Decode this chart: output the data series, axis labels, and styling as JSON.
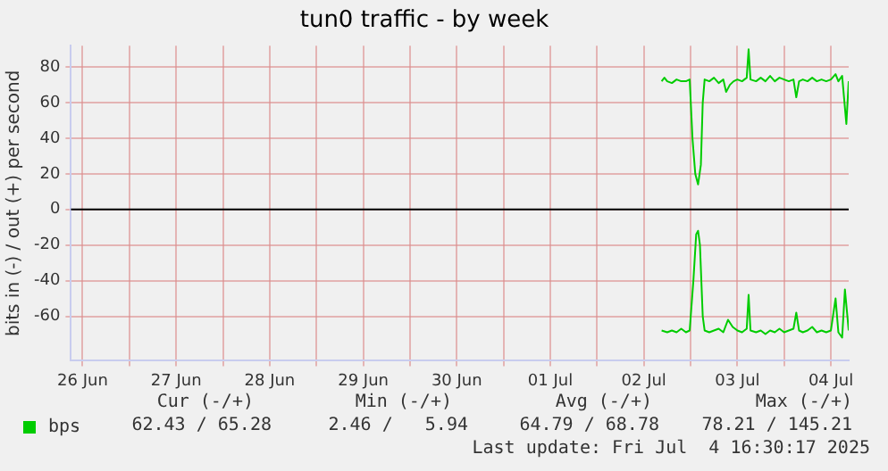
{
  "chart_data": {
    "type": "line",
    "title": "tun0 traffic - by week",
    "ylabel": "bits in (-) / out (+) per second",
    "xlim": [
      "2025-06-26T09:00",
      "2025-07-04T16:34"
    ],
    "xticks": [
      {
        "value": "2025-06-26T12:00",
        "label": "26 Jun"
      },
      {
        "value": "2025-06-27T00:00",
        "label": null
      },
      {
        "value": "2025-06-27T12:00",
        "label": "27 Jun"
      },
      {
        "value": "2025-06-28T00:00",
        "label": null
      },
      {
        "value": "2025-06-28T12:00",
        "label": "28 Jun"
      },
      {
        "value": "2025-06-29T00:00",
        "label": null
      },
      {
        "value": "2025-06-29T12:00",
        "label": "29 Jun"
      },
      {
        "value": "2025-06-30T00:00",
        "label": null
      },
      {
        "value": "2025-06-30T12:00",
        "label": "30 Jun"
      },
      {
        "value": "2025-07-01T00:00",
        "label": null
      },
      {
        "value": "2025-07-01T12:00",
        "label": "01 Jul"
      },
      {
        "value": "2025-07-02T00:00",
        "label": null
      },
      {
        "value": "2025-07-02T12:00",
        "label": "02 Jul"
      },
      {
        "value": "2025-07-03T00:00",
        "label": null
      },
      {
        "value": "2025-07-03T12:00",
        "label": "03 Jul"
      },
      {
        "value": "2025-07-04T00:00",
        "label": null
      },
      {
        "value": "2025-07-04T12:00",
        "label": "04 Jul"
      }
    ],
    "ylim": [
      -85,
      92
    ],
    "yticks": [
      -60,
      -40,
      -20,
      0,
      20,
      40,
      60,
      80
    ],
    "grid": true,
    "legend": "bottom",
    "marker": "none",
    "line_style": "solid",
    "ref_lines": [
      {
        "axis": "y",
        "value": 0,
        "color": "#000000"
      }
    ],
    "series": [
      {
        "name": "bps",
        "color": "#00cc00",
        "x": [
          "2025-07-02T16:34",
          "2025-07-02T17:17",
          "2025-07-02T18:00",
          "2025-07-02T19:12",
          "2025-07-02T20:24",
          "2025-07-02T21:36",
          "2025-07-02T22:48",
          "2025-07-02T23:46",
          "2025-07-03T00:29",
          "2025-07-03T01:12",
          "2025-07-03T01:55",
          "2025-07-03T02:38",
          "2025-07-03T03:07",
          "2025-07-03T03:36",
          "2025-07-03T04:48",
          "2025-07-03T06:00",
          "2025-07-03T07:12",
          "2025-07-03T08:24",
          "2025-07-03T09:07",
          "2025-07-03T10:05",
          "2025-07-03T11:02",
          "2025-07-03T12:00",
          "2025-07-03T13:12",
          "2025-07-03T14:24",
          "2025-07-03T14:53",
          "2025-07-03T15:22",
          "2025-07-03T16:48",
          "2025-07-03T18:00",
          "2025-07-03T19:12",
          "2025-07-03T20:24",
          "2025-07-03T21:36",
          "2025-07-03T22:48",
          "2025-07-04T00:00",
          "2025-07-04T01:12",
          "2025-07-04T02:24",
          "2025-07-04T03:07",
          "2025-07-04T03:50",
          "2025-07-04T04:48",
          "2025-07-04T06:00",
          "2025-07-04T07:12",
          "2025-07-04T08:24",
          "2025-07-04T09:36",
          "2025-07-04T10:48",
          "2025-07-04T12:00",
          "2025-07-04T13:12",
          "2025-07-04T13:55",
          "2025-07-04T14:53",
          "2025-07-04T15:58",
          "2025-07-04T16:34"
        ],
        "values": [
          72,
          74,
          72,
          71,
          73,
          72,
          72,
          73,
          40,
          20,
          14,
          25,
          60,
          73,
          72,
          74,
          71,
          73,
          66,
          70,
          72,
          73,
          72,
          74,
          90,
          73,
          72,
          74,
          72,
          75,
          72,
          74,
          73,
          72,
          73,
          63,
          72,
          73,
          72,
          74,
          72,
          73,
          72,
          73,
          76,
          72,
          75,
          48,
          72
        ]
      },
      {
        "color": "#00cc00",
        "x": [
          "2025-07-02T16:34",
          "2025-07-02T18:00",
          "2025-07-02T19:12",
          "2025-07-02T20:24",
          "2025-07-02T21:36",
          "2025-07-02T22:48",
          "2025-07-02T23:46",
          "2025-07-03T00:43",
          "2025-07-03T01:26",
          "2025-07-03T01:55",
          "2025-07-03T02:24",
          "2025-07-03T03:07",
          "2025-07-03T03:36",
          "2025-07-03T04:48",
          "2025-07-03T06:00",
          "2025-07-03T07:12",
          "2025-07-03T08:24",
          "2025-07-03T09:36",
          "2025-07-03T10:48",
          "2025-07-03T12:00",
          "2025-07-03T13:12",
          "2025-07-03T14:24",
          "2025-07-03T14:53",
          "2025-07-03T15:22",
          "2025-07-03T16:48",
          "2025-07-03T18:00",
          "2025-07-03T19:12",
          "2025-07-03T20:24",
          "2025-07-03T21:36",
          "2025-07-03T22:48",
          "2025-07-04T00:00",
          "2025-07-04T01:12",
          "2025-07-04T02:24",
          "2025-07-04T03:07",
          "2025-07-04T03:50",
          "2025-07-04T04:48",
          "2025-07-04T06:00",
          "2025-07-04T07:12",
          "2025-07-04T08:24",
          "2025-07-04T09:36",
          "2025-07-04T10:48",
          "2025-07-04T12:00",
          "2025-07-04T13:12",
          "2025-07-04T13:55",
          "2025-07-04T14:53",
          "2025-07-04T15:36",
          "2025-07-04T16:34"
        ],
        "values": [
          -68,
          -69,
          -68,
          -69,
          -67,
          -69,
          -68,
          -40,
          -14,
          -12,
          -20,
          -60,
          -68,
          -69,
          -68,
          -67,
          -69,
          -62,
          -66,
          -68,
          -69,
          -67,
          -48,
          -68,
          -69,
          -68,
          -70,
          -68,
          -69,
          -67,
          -69,
          -68,
          -67,
          -58,
          -68,
          -69,
          -68,
          -66,
          -69,
          -68,
          -69,
          -68,
          -50,
          -69,
          -72,
          -45,
          -68
        ]
      }
    ],
    "annotations": [
      "Cur (-/+)",
      "Min (-/+)",
      "Avg (-/+)",
      "Max (-/+)",
      "62.43 / 65.28",
      "2.46 /   5.94",
      "64.79 / 68.78",
      "78.21 / 145.21",
      "Last update: Fri Jul  4 16:30:17 2025"
    ]
  }
}
